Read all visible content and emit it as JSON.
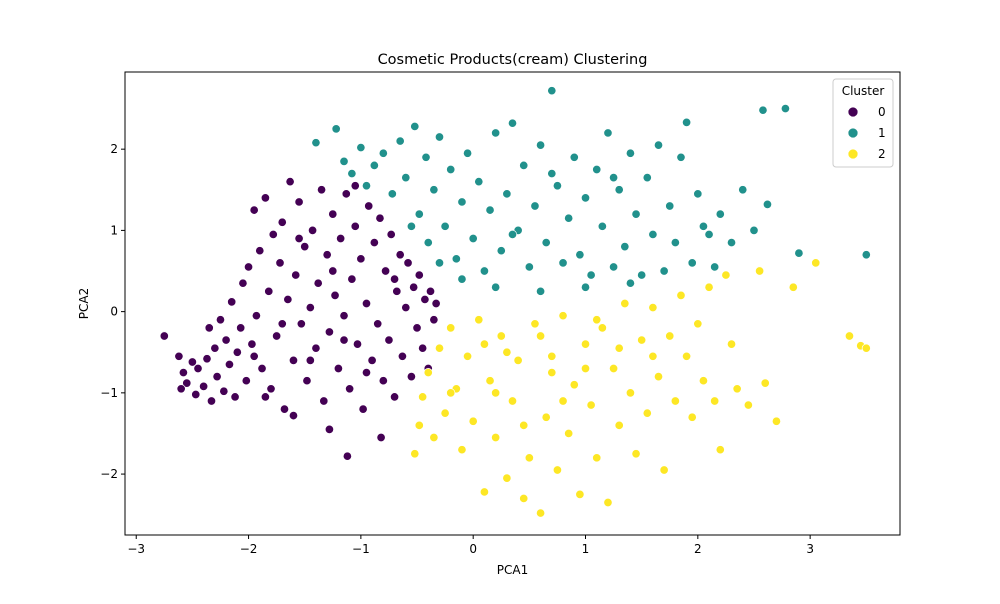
{
  "chart_data": {
    "type": "scatter",
    "title": "Cosmetic Products(cream) Clustering",
    "xlabel": "PCA1",
    "ylabel": "PCA2",
    "xlim": [
      -3.1,
      3.8
    ],
    "ylim": [
      -2.75,
      2.95
    ],
    "x_ticks": [
      -3,
      -2,
      -1,
      0,
      1,
      2,
      3
    ],
    "y_ticks": [
      -2,
      -1,
      0,
      1,
      2
    ],
    "x_tick_labels": [
      "−3",
      "−2",
      "−1",
      "0",
      "1",
      "2",
      "3"
    ],
    "y_tick_labels": [
      "−2",
      "−1",
      "0",
      "1",
      "2"
    ],
    "grid": false,
    "legend": {
      "title": "Cluster",
      "placement": "top-right"
    },
    "series": [
      {
        "name": "0",
        "color": "#440154",
        "points": [
          [
            -2.75,
            -0.3
          ],
          [
            -2.62,
            -0.55
          ],
          [
            -2.58,
            -0.75
          ],
          [
            -2.55,
            -0.88
          ],
          [
            -2.5,
            -0.62
          ],
          [
            -2.47,
            -1.02
          ],
          [
            -2.45,
            -0.7
          ],
          [
            -2.4,
            -0.92
          ],
          [
            -2.37,
            -0.58
          ],
          [
            -2.33,
            -1.1
          ],
          [
            -2.3,
            -0.45
          ],
          [
            -2.28,
            -0.8
          ],
          [
            -2.25,
            -0.1
          ],
          [
            -2.22,
            -0.98
          ],
          [
            -2.2,
            -0.35
          ],
          [
            -2.17,
            -0.65
          ],
          [
            -2.15,
            0.12
          ],
          [
            -2.12,
            -1.05
          ],
          [
            -2.1,
            -0.5
          ],
          [
            -2.07,
            -0.2
          ],
          [
            -2.05,
            0.35
          ],
          [
            -2.02,
            -0.85
          ],
          [
            -2.0,
            0.55
          ],
          [
            -1.97,
            -0.4
          ],
          [
            -1.95,
            1.25
          ],
          [
            -1.93,
            -0.05
          ],
          [
            -1.9,
            0.75
          ],
          [
            -1.88,
            -0.7
          ],
          [
            -1.85,
            1.4
          ],
          [
            -1.82,
            0.25
          ],
          [
            -1.8,
            -0.95
          ],
          [
            -1.78,
            0.95
          ],
          [
            -1.75,
            -0.3
          ],
          [
            -1.72,
            0.6
          ],
          [
            -1.7,
            1.1
          ],
          [
            -1.68,
            -1.2
          ],
          [
            -1.65,
            0.15
          ],
          [
            -1.63,
            1.6
          ],
          [
            -1.6,
            -0.6
          ],
          [
            -1.58,
            0.45
          ],
          [
            -1.55,
            1.35
          ],
          [
            -1.53,
            -0.15
          ],
          [
            -1.5,
            0.8
          ],
          [
            -1.48,
            -0.85
          ],
          [
            -1.45,
            0.05
          ],
          [
            -1.43,
            1.0
          ],
          [
            -1.4,
            -0.45
          ],
          [
            -1.38,
            0.35
          ],
          [
            -1.35,
            1.5
          ],
          [
            -1.33,
            -1.1
          ],
          [
            -1.3,
            0.7
          ],
          [
            -1.28,
            -0.25
          ],
          [
            -1.25,
            1.2
          ],
          [
            -1.23,
            0.2
          ],
          [
            -1.2,
            -0.7
          ],
          [
            -1.18,
            0.9
          ],
          [
            -1.15,
            -0.05
          ],
          [
            -1.13,
            1.45
          ],
          [
            -1.1,
            -0.95
          ],
          [
            -1.08,
            0.4
          ],
          [
            -1.05,
            1.05
          ],
          [
            -1.03,
            -0.4
          ],
          [
            -1.0,
            0.65
          ],
          [
            -0.98,
            -1.2
          ],
          [
            -0.95,
            0.1
          ],
          [
            -0.93,
            1.3
          ],
          [
            -0.9,
            -0.6
          ],
          [
            -0.88,
            0.85
          ],
          [
            -0.85,
            -0.15
          ],
          [
            -0.83,
            1.15
          ],
          [
            -0.8,
            -0.85
          ],
          [
            -0.78,
            0.5
          ],
          [
            -0.75,
            -0.35
          ],
          [
            -0.73,
            0.95
          ],
          [
            -0.7,
            -1.05
          ],
          [
            -0.68,
            0.25
          ],
          [
            -0.65,
            0.7
          ],
          [
            -0.63,
            -0.55
          ],
          [
            -0.6,
            0.05
          ],
          [
            -0.58,
            0.6
          ],
          [
            -0.55,
            -0.8
          ],
          [
            -0.53,
            0.3
          ],
          [
            -0.5,
            -0.2
          ],
          [
            -0.48,
            0.45
          ],
          [
            -0.45,
            -0.45
          ],
          [
            -0.43,
            0.15
          ],
          [
            -0.4,
            -0.7
          ],
          [
            -0.38,
            0.25
          ],
          [
            -0.35,
            -0.1
          ],
          [
            -0.33,
            0.1
          ],
          [
            -1.28,
            -1.45
          ],
          [
            -1.12,
            -1.78
          ],
          [
            -1.6,
            -1.28
          ],
          [
            -0.82,
            -1.55
          ],
          [
            -2.6,
            -0.95
          ],
          [
            -2.35,
            -0.2
          ],
          [
            -1.95,
            -0.55
          ],
          [
            -1.7,
            -0.15
          ],
          [
            -1.45,
            -0.6
          ],
          [
            -1.15,
            -0.35
          ],
          [
            -0.95,
            -0.75
          ],
          [
            -1.25,
            0.5
          ],
          [
            -1.55,
            0.9
          ],
          [
            -0.7,
            0.4
          ],
          [
            -1.85,
            -1.05
          ],
          [
            -1.05,
            1.55
          ]
        ]
      },
      {
        "name": "1",
        "color": "#21918c",
        "points": [
          [
            -1.4,
            2.08
          ],
          [
            -1.22,
            2.25
          ],
          [
            -1.15,
            1.85
          ],
          [
            -1.08,
            1.7
          ],
          [
            -1.0,
            2.02
          ],
          [
            -0.95,
            1.55
          ],
          [
            -0.88,
            1.8
          ],
          [
            -0.8,
            1.95
          ],
          [
            -0.72,
            1.45
          ],
          [
            -0.65,
            2.1
          ],
          [
            -0.6,
            1.65
          ],
          [
            -0.52,
            2.28
          ],
          [
            -0.48,
            1.2
          ],
          [
            -0.42,
            1.9
          ],
          [
            -0.35,
            1.5
          ],
          [
            -0.3,
            2.15
          ],
          [
            -0.25,
            1.05
          ],
          [
            -0.2,
            1.75
          ],
          [
            -0.15,
            0.65
          ],
          [
            -0.1,
            1.35
          ],
          [
            -0.05,
            1.95
          ],
          [
            0.0,
            0.9
          ],
          [
            0.05,
            1.6
          ],
          [
            0.1,
            0.5
          ],
          [
            0.15,
            1.25
          ],
          [
            0.2,
            2.2
          ],
          [
            0.25,
            0.75
          ],
          [
            0.3,
            1.45
          ],
          [
            0.35,
            2.32
          ],
          [
            0.4,
            1.0
          ],
          [
            0.45,
            1.8
          ],
          [
            0.5,
            0.55
          ],
          [
            0.55,
            1.3
          ],
          [
            0.6,
            2.05
          ],
          [
            0.65,
            0.85
          ],
          [
            0.7,
            2.72
          ],
          [
            0.75,
            1.55
          ],
          [
            0.8,
            0.6
          ],
          [
            0.85,
            1.15
          ],
          [
            0.9,
            1.9
          ],
          [
            0.95,
            0.7
          ],
          [
            1.0,
            1.4
          ],
          [
            1.05,
            0.45
          ],
          [
            1.1,
            1.75
          ],
          [
            1.15,
            1.05
          ],
          [
            1.2,
            2.2
          ],
          [
            1.25,
            0.55
          ],
          [
            1.3,
            1.5
          ],
          [
            1.35,
            0.8
          ],
          [
            1.4,
            1.95
          ],
          [
            1.45,
            1.2
          ],
          [
            1.5,
            0.45
          ],
          [
            1.55,
            1.65
          ],
          [
            1.6,
            0.95
          ],
          [
            1.65,
            2.05
          ],
          [
            1.7,
            0.5
          ],
          [
            1.75,
            1.3
          ],
          [
            1.8,
            0.85
          ],
          [
            1.85,
            1.9
          ],
          [
            1.9,
            2.33
          ],
          [
            1.95,
            0.6
          ],
          [
            2.0,
            1.45
          ],
          [
            2.05,
            1.05
          ],
          [
            2.1,
            0.95
          ],
          [
            2.15,
            0.55
          ],
          [
            2.2,
            1.2
          ],
          [
            2.3,
            0.85
          ],
          [
            2.4,
            1.5
          ],
          [
            2.5,
            1.0
          ],
          [
            2.58,
            2.48
          ],
          [
            2.62,
            1.32
          ],
          [
            2.78,
            2.5
          ],
          [
            2.9,
            0.72
          ],
          [
            3.5,
            0.7
          ],
          [
            -0.4,
            0.85
          ],
          [
            -0.3,
            0.6
          ],
          [
            0.2,
            0.3
          ],
          [
            0.6,
            0.25
          ],
          [
            1.0,
            0.3
          ],
          [
            1.4,
            0.35
          ],
          [
            -0.1,
            0.4
          ],
          [
            0.35,
            0.95
          ],
          [
            1.25,
            1.65
          ],
          [
            0.7,
            1.7
          ],
          [
            -0.55,
            1.05
          ]
        ]
      },
      {
        "name": "2",
        "color": "#fde725",
        "points": [
          [
            -0.52,
            -1.75
          ],
          [
            -0.48,
            -1.4
          ],
          [
            -0.45,
            -1.05
          ],
          [
            -0.4,
            -0.75
          ],
          [
            -0.35,
            -1.55
          ],
          [
            -0.3,
            -0.45
          ],
          [
            -0.25,
            -1.25
          ],
          [
            -0.2,
            -0.2
          ],
          [
            -0.15,
            -0.95
          ],
          [
            -0.1,
            -1.7
          ],
          [
            -0.05,
            -0.55
          ],
          [
            0.0,
            -1.35
          ],
          [
            0.05,
            -0.1
          ],
          [
            0.1,
            -2.22
          ],
          [
            0.15,
            -0.85
          ],
          [
            0.2,
            -1.55
          ],
          [
            0.25,
            -0.3
          ],
          [
            0.3,
            -2.05
          ],
          [
            0.35,
            -1.1
          ],
          [
            0.4,
            -0.6
          ],
          [
            0.45,
            -2.3
          ],
          [
            0.5,
            -1.8
          ],
          [
            0.55,
            -0.15
          ],
          [
            0.6,
            -2.48
          ],
          [
            0.65,
            -1.3
          ],
          [
            0.7,
            -0.75
          ],
          [
            0.75,
            -1.95
          ],
          [
            0.8,
            -0.05
          ],
          [
            0.85,
            -1.5
          ],
          [
            0.9,
            -0.9
          ],
          [
            0.95,
            -2.25
          ],
          [
            1.0,
            -0.4
          ],
          [
            1.05,
            -1.15
          ],
          [
            1.1,
            -1.8
          ],
          [
            1.15,
            -0.2
          ],
          [
            1.2,
            -2.35
          ],
          [
            1.25,
            -0.7
          ],
          [
            1.3,
            -1.4
          ],
          [
            1.35,
            0.1
          ],
          [
            1.4,
            -1.0
          ],
          [
            1.45,
            -1.75
          ],
          [
            1.5,
            -0.35
          ],
          [
            1.55,
            -1.25
          ],
          [
            1.6,
            0.05
          ],
          [
            1.65,
            -0.8
          ],
          [
            1.7,
            -1.95
          ],
          [
            1.75,
            -0.3
          ],
          [
            1.8,
            -1.1
          ],
          [
            1.85,
            0.2
          ],
          [
            1.9,
            -0.55
          ],
          [
            1.95,
            -1.3
          ],
          [
            2.0,
            -0.15
          ],
          [
            2.05,
            -0.85
          ],
          [
            2.1,
            0.3
          ],
          [
            2.15,
            -1.1
          ],
          [
            2.2,
            -1.7
          ],
          [
            2.25,
            0.45
          ],
          [
            2.3,
            -0.4
          ],
          [
            2.35,
            -0.95
          ],
          [
            2.45,
            -1.15
          ],
          [
            2.55,
            0.5
          ],
          [
            2.6,
            -0.88
          ],
          [
            2.7,
            -1.35
          ],
          [
            2.85,
            0.3
          ],
          [
            3.05,
            0.6
          ],
          [
            3.35,
            -0.3
          ],
          [
            3.45,
            -0.42
          ],
          [
            3.5,
            -0.45
          ],
          [
            0.3,
            -0.5
          ],
          [
            0.6,
            -0.3
          ],
          [
            1.0,
            -0.7
          ],
          [
            0.1,
            -0.4
          ],
          [
            -0.2,
            -1.0
          ],
          [
            0.8,
            -1.1
          ],
          [
            1.3,
            -0.45
          ],
          [
            0.45,
            -1.4
          ],
          [
            1.6,
            -0.55
          ],
          [
            0.2,
            -1.0
          ],
          [
            1.1,
            -0.1
          ],
          [
            0.7,
            -0.55
          ]
        ]
      }
    ]
  }
}
